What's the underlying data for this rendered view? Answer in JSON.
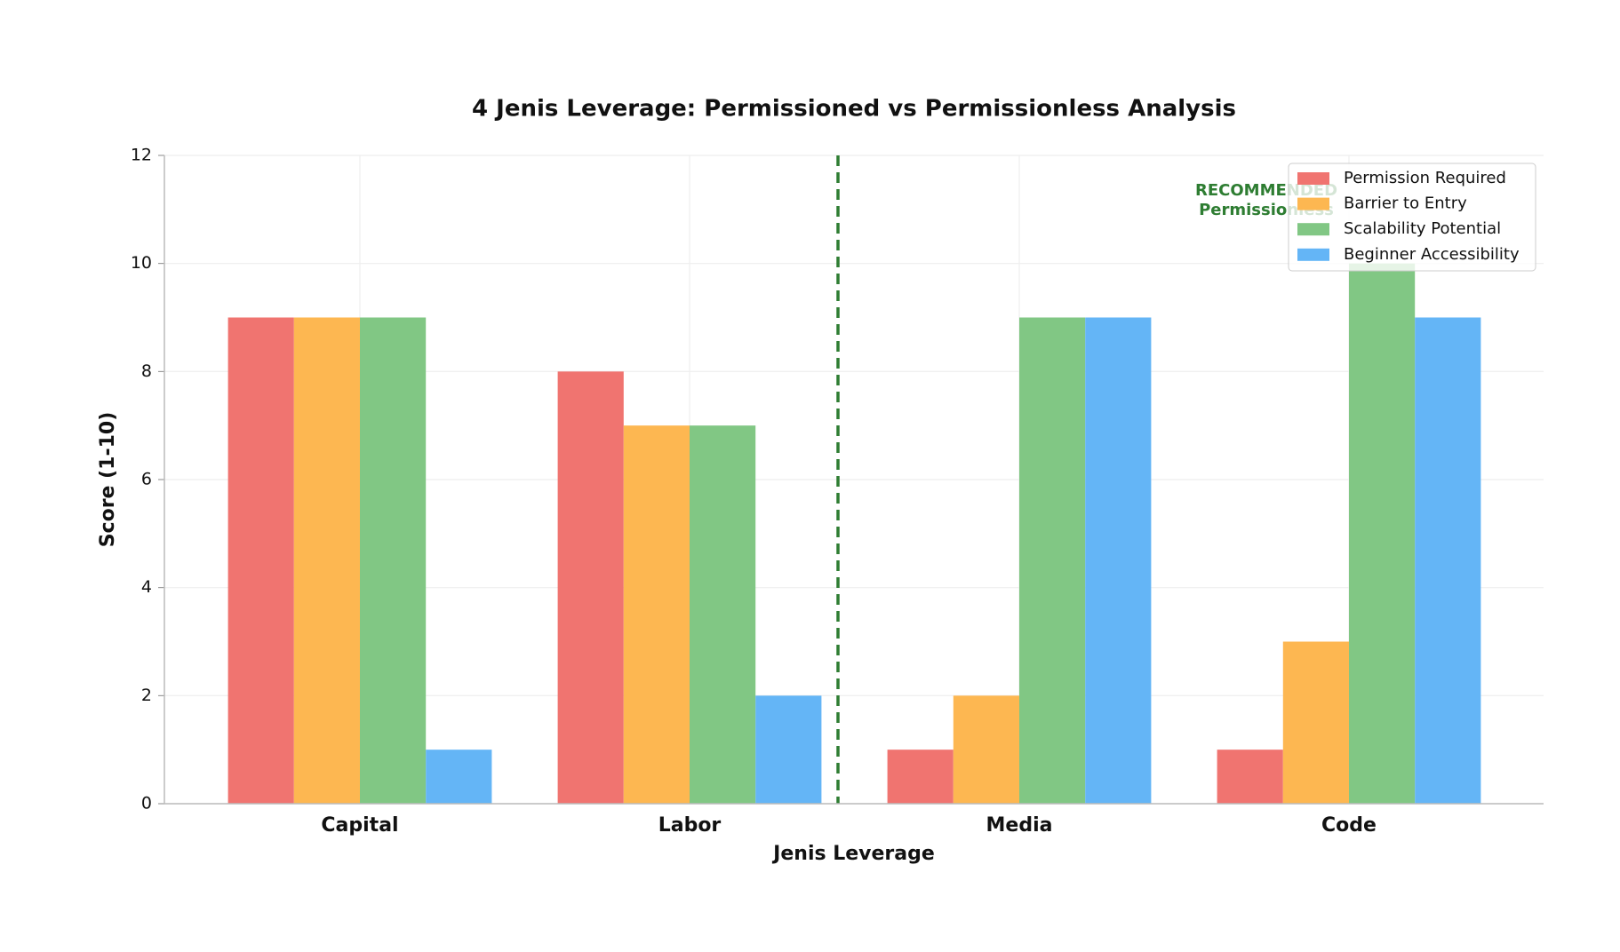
{
  "chart_data": {
    "type": "bar",
    "title": "4 Jenis Leverage: Permissioned vs Permissionless Analysis",
    "x_label": "Jenis Leverage",
    "y_label": "Score (1-10)",
    "categories": [
      "Capital",
      "Labor",
      "Media",
      "Code"
    ],
    "series": [
      {
        "name": "Permission Required",
        "color": "#f07470",
        "values": [
          9,
          8,
          1,
          1
        ]
      },
      {
        "name": "Barrier to Entry",
        "color": "#fdb751",
        "values": [
          9,
          7,
          2,
          3
        ]
      },
      {
        "name": "Scalability Potential",
        "color": "#81c784",
        "values": [
          9,
          7,
          9,
          10
        ]
      },
      {
        "name": "Beginner Accessibility",
        "color": "#64b5f6",
        "values": [
          1,
          2,
          9,
          9
        ]
      }
    ],
    "annotation": [
      "RECOMMENDED",
      "Permissionless"
    ],
    "ylim": [
      0,
      12
    ],
    "yticks": [
      0,
      2,
      4,
      6,
      8,
      10,
      12
    ],
    "grid": true,
    "legend": "upper right"
  }
}
